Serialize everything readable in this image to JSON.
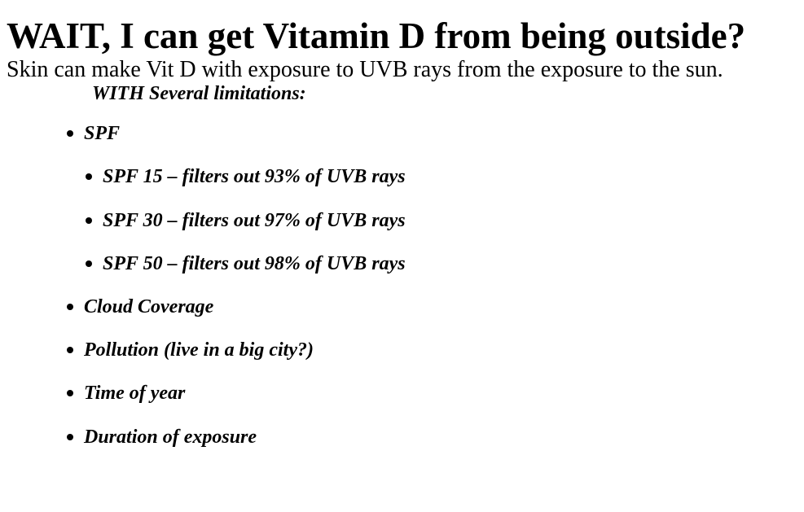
{
  "slide": {
    "title": "WAIT, I can get Vitamin D from being outside?",
    "subtitle": "Skin can make Vit D with exposure to UVB rays from the exposure to the sun.",
    "limitations_heading": "WITH Several limitations:",
    "bullets": [
      {
        "text": "SPF",
        "level": 1
      },
      {
        "text": "SPF 15 – filters out 93% of UVB rays",
        "level": 2
      },
      {
        "text": "SPF 30 – filters out 97% of UVB rays",
        "level": 2
      },
      {
        "text": "SPF 50 – filters out 98% of UVB rays",
        "level": 2
      },
      {
        "text": "Cloud Coverage",
        "level": 1
      },
      {
        "text": "Pollution (live in a big city?)",
        "level": 1
      },
      {
        "text": "Time of year",
        "level": 1
      },
      {
        "text": "Duration of exposure",
        "level": 1
      }
    ]
  }
}
